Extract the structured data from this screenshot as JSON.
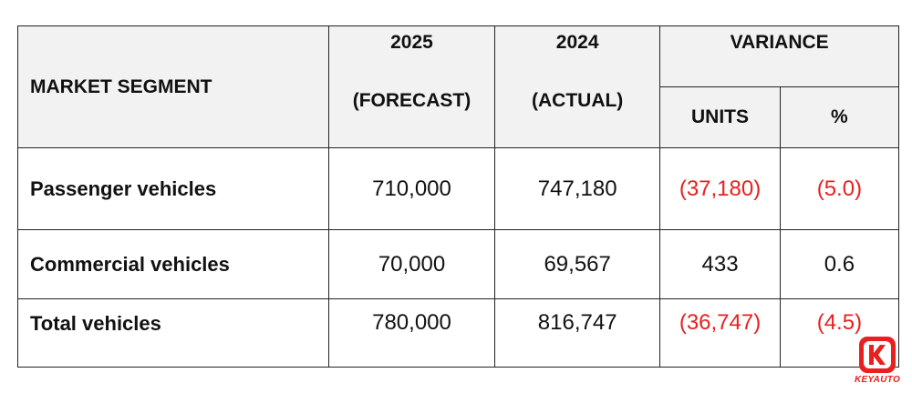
{
  "header": {
    "segment": "MARKET SEGMENT",
    "year_2025": "2025",
    "forecast": "(FORECAST)",
    "year_2024": "2024",
    "actual": "(ACTUAL)",
    "variance": "VARIANCE",
    "units": "UNITS",
    "percent": "%"
  },
  "rows": [
    {
      "label": "Passenger vehicles",
      "forecast": "710,000",
      "actual": "747,180",
      "units": "(37,180)",
      "percent": "(5.0)"
    },
    {
      "label": "Commercial vehicles",
      "forecast": "70,000",
      "actual": "69,567",
      "units": "433",
      "percent": "0.6"
    },
    {
      "label": "Total vehicles",
      "forecast": "780,000",
      "actual": "816,747",
      "units": "(36,747)",
      "percent": "(4.5)"
    }
  ],
  "colors": {
    "negative": "#e8201f",
    "header_bg": "#f2f2f2",
    "brand": "#e8201f"
  },
  "logo": {
    "text": "KEYAUTO",
    "icon": "keyauto-logo-icon"
  }
}
